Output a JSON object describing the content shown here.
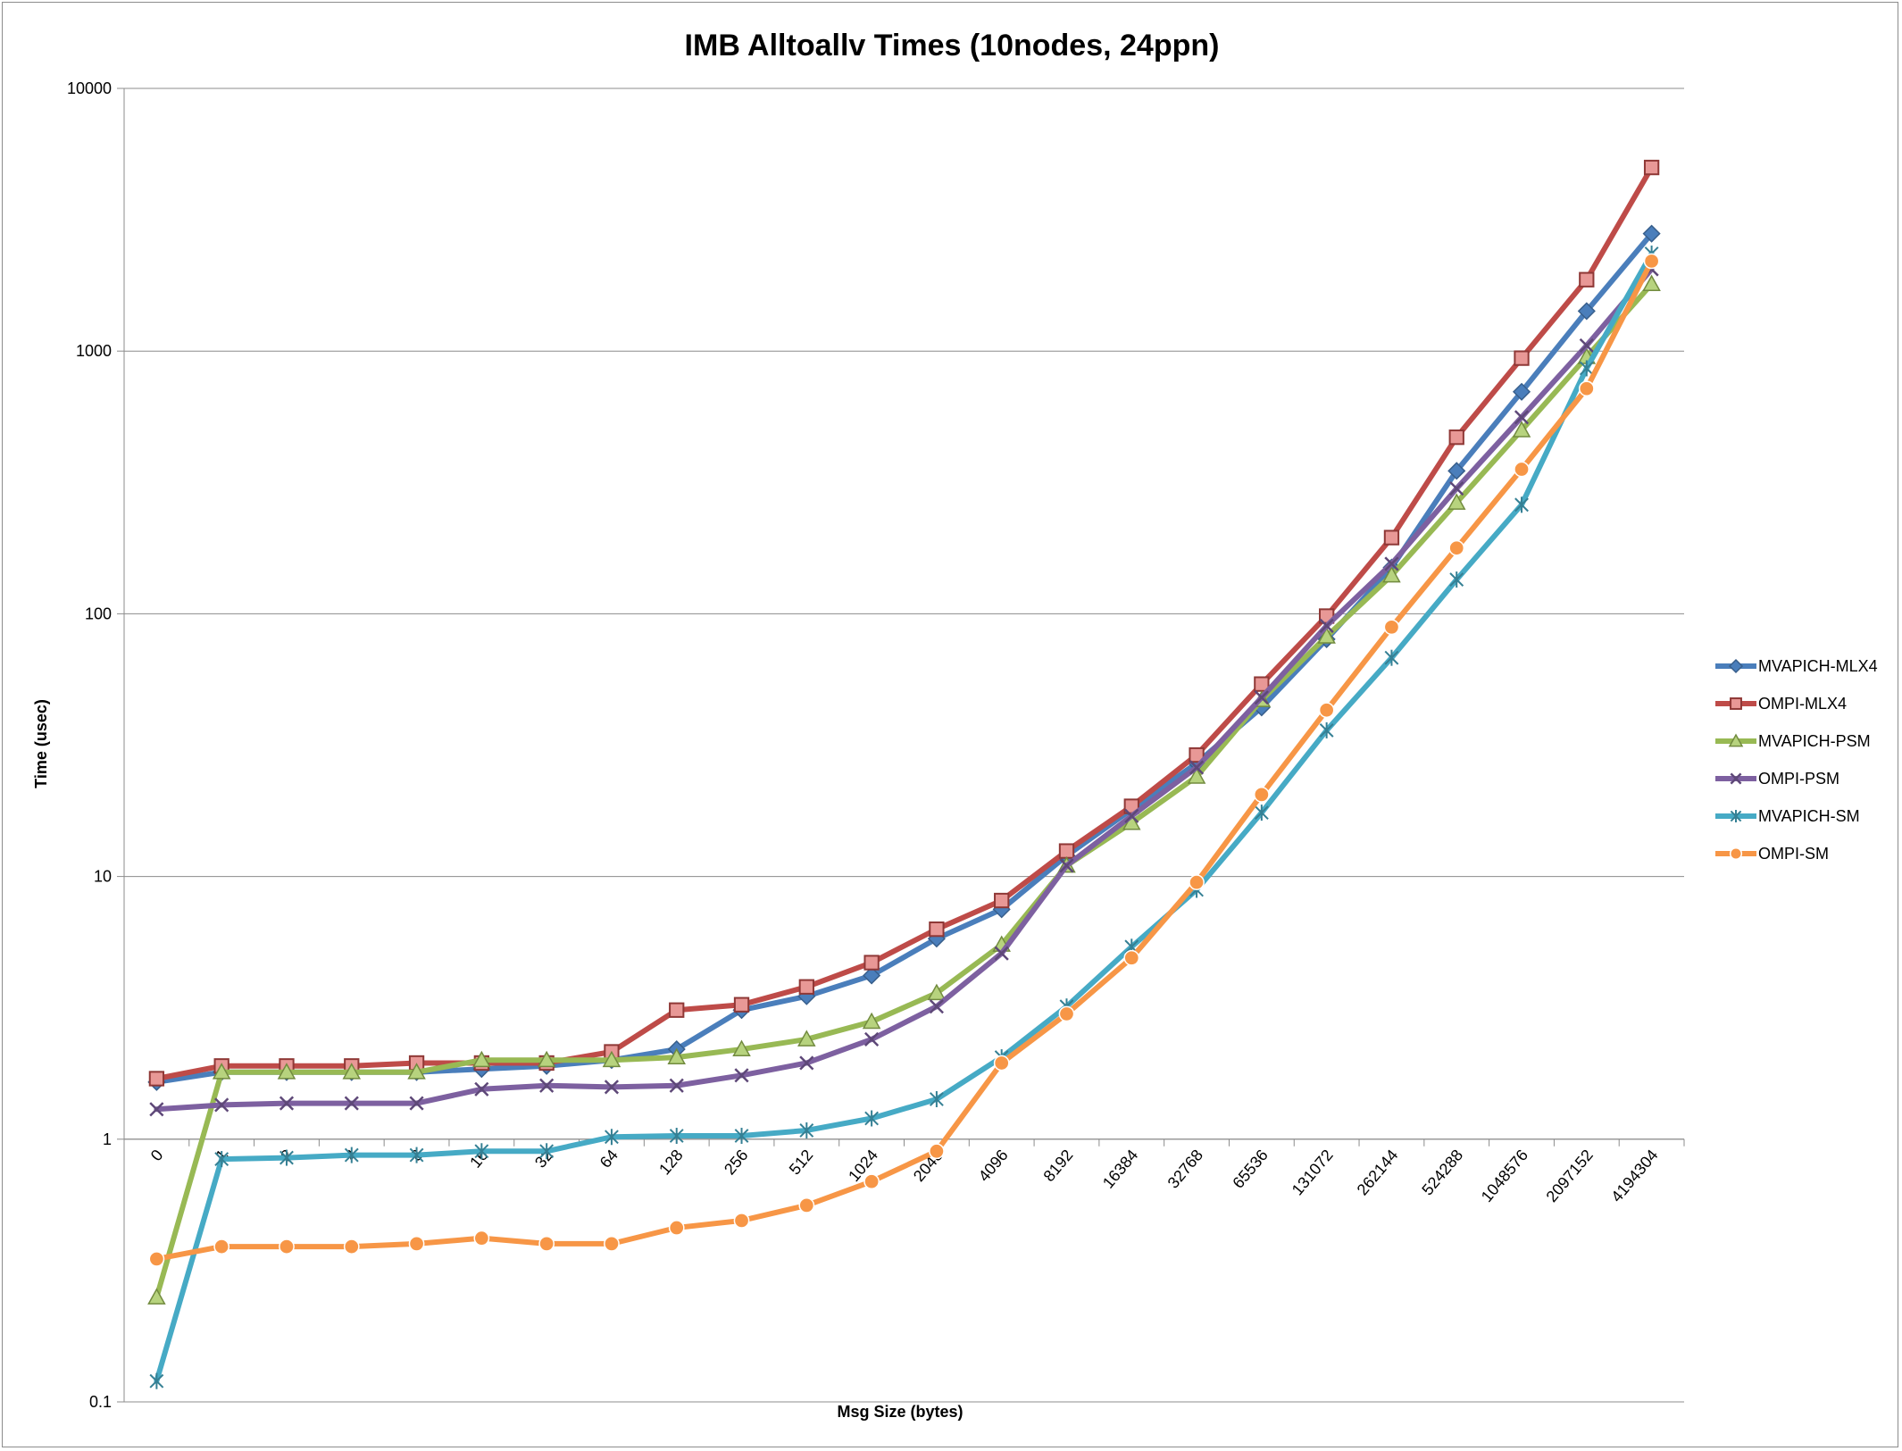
{
  "chart_data": {
    "type": "line",
    "title": "IMB Alltoallv Times (10nodes, 24ppn)",
    "xlabel": "Msg Size (bytes)",
    "ylabel": "Time (usec)",
    "yscale": "log",
    "ylim": [
      0.1,
      10000
    ],
    "y_ticks": [
      "0.1",
      "1",
      "10",
      "100",
      "1000",
      "10000"
    ],
    "grid": "horizontal major gridlines",
    "legend_position": "right",
    "categories": [
      "0",
      "1",
      "2",
      "4",
      "8",
      "16",
      "32",
      "64",
      "128",
      "256",
      "512",
      "1024",
      "2048",
      "4096",
      "8192",
      "16384",
      "32768",
      "65536",
      "131072",
      "262144",
      "524288",
      "1048576",
      "2097152",
      "4194304"
    ],
    "series": [
      {
        "name": "MVAPICH-MLX4",
        "color": "#4a7ebb",
        "marker": "diamond",
        "values": [
          1.65,
          1.8,
          1.8,
          1.8,
          1.8,
          1.85,
          1.9,
          2.0,
          2.2,
          3.1,
          3.5,
          4.2,
          5.8,
          7.5,
          12.0,
          18.0,
          27.0,
          44.0,
          80.0,
          150.0,
          350.0,
          700.0,
          1420.0,
          2800.0
        ]
      },
      {
        "name": "OMPI-MLX4",
        "color": "#be4b48",
        "marker": "square",
        "values": [
          1.7,
          1.9,
          1.9,
          1.9,
          1.95,
          1.95,
          1.95,
          2.15,
          3.1,
          3.25,
          3.8,
          4.7,
          6.3,
          8.1,
          12.5,
          18.5,
          29.0,
          54.0,
          98.0,
          195.0,
          470.0,
          940.0,
          1870.0,
          5000.0
        ]
      },
      {
        "name": "MVAPICH-PSM",
        "color": "#98b954",
        "marker": "triangle",
        "values": [
          0.25,
          1.8,
          1.8,
          1.8,
          1.8,
          2.0,
          2.0,
          2.0,
          2.05,
          2.2,
          2.4,
          2.8,
          3.6,
          5.5,
          11.0,
          16.0,
          24.0,
          47.0,
          82.0,
          140.0,
          265.0,
          500.0,
          950.0,
          1800.0
        ]
      },
      {
        "name": "OMPI-PSM",
        "color": "#7d60a0",
        "marker": "x",
        "values": [
          1.3,
          1.35,
          1.37,
          1.37,
          1.37,
          1.55,
          1.6,
          1.58,
          1.6,
          1.75,
          1.95,
          2.4,
          3.2,
          5.1,
          11.0,
          17.0,
          26.0,
          48.0,
          90.0,
          155.0,
          300.0,
          560.0,
          1050.0,
          2050.0
        ]
      },
      {
        "name": "MVAPICH-SM",
        "color": "#46aac5",
        "marker": "asterisk",
        "values": [
          0.12,
          0.84,
          0.85,
          0.87,
          0.87,
          0.9,
          0.9,
          1.02,
          1.03,
          1.03,
          1.08,
          1.2,
          1.42,
          2.05,
          3.2,
          5.4,
          8.9,
          17.5,
          36.0,
          68.0,
          135.0,
          260.0,
          860.0,
          2350.0
        ]
      },
      {
        "name": "OMPI-SM",
        "color": "#f79646",
        "marker": "circle",
        "values": [
          0.35,
          0.39,
          0.39,
          0.39,
          0.4,
          0.42,
          0.4,
          0.4,
          0.46,
          0.49,
          0.56,
          0.69,
          0.9,
          1.95,
          3.0,
          4.9,
          9.5,
          20.5,
          43.0,
          89.0,
          178.0,
          355.0,
          720.0,
          2200.0
        ]
      }
    ]
  }
}
